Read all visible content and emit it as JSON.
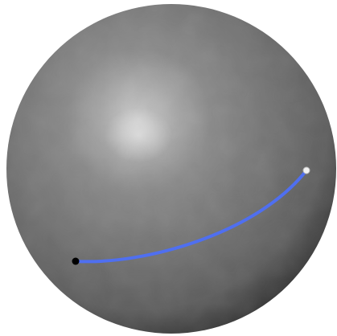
{
  "scene": {
    "background_color": "#ffffff",
    "sphere": {
      "base_color": "#5e5e5e",
      "highlight_color": "#c9c9c9",
      "shadow_color": "#2a2a2a"
    },
    "geodesic": {
      "color": "#4f6ff0",
      "start_point_color": "#000000",
      "end_point_color": "#f2f2f2"
    }
  }
}
